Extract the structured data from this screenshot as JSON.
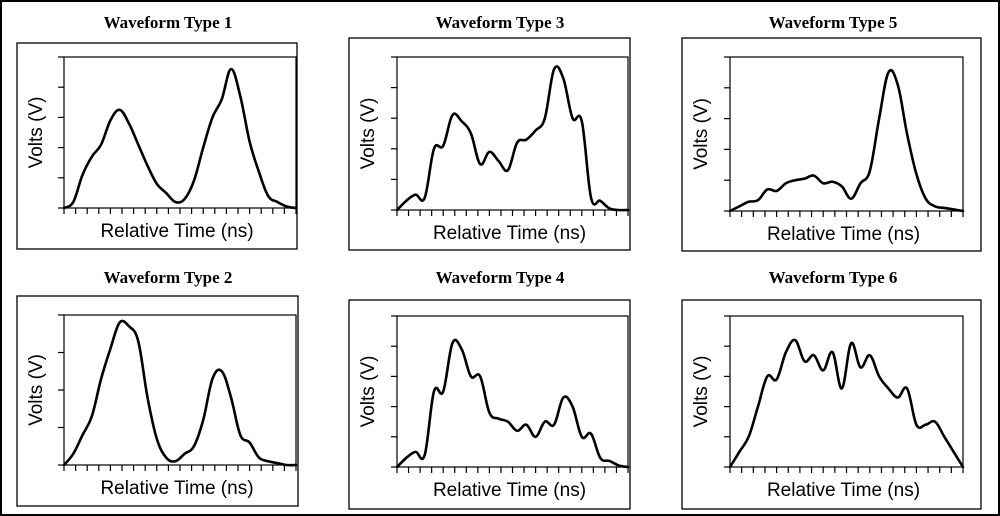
{
  "figure_border": true,
  "chart_data": [
    {
      "type": "line",
      "title": "Waveform Type 1",
      "xlabel": "Relative Time (ns)",
      "ylabel": "Volts (V)",
      "xlim": [
        0,
        20
      ],
      "ylim": [
        0,
        5
      ],
      "x_ticks": 20,
      "y_ticks": 5,
      "series": [
        {
          "name": "Waveform Type 1",
          "x": [
            0,
            0.8,
            1.6,
            2.4,
            3.2,
            4.0,
            4.8,
            5.6,
            6.4,
            7.2,
            8.0,
            8.8,
            9.6,
            10.4,
            11.2,
            12.0,
            12.8,
            13.6,
            14.4,
            15.2,
            16.0,
            16.8,
            17.6,
            18.4,
            19.2,
            20.0
          ],
          "y": [
            0.0,
            0.2,
            1.1,
            1.7,
            2.1,
            2.9,
            3.25,
            2.8,
            2.1,
            1.4,
            0.8,
            0.5,
            0.2,
            0.3,
            0.9,
            2.0,
            3.0,
            3.6,
            4.6,
            3.7,
            2.2,
            1.2,
            0.4,
            0.2,
            0.05,
            0.0
          ]
        }
      ]
    },
    {
      "type": "line",
      "title": "Waveform Type 2",
      "xlabel": "Relative Time (ns)",
      "ylabel": "Volts (V)",
      "xlim": [
        0,
        20
      ],
      "ylim": [
        0,
        4
      ],
      "x_ticks": 20,
      "y_ticks": 4,
      "series": [
        {
          "name": "Waveform Type 2",
          "x": [
            0,
            0.8,
            1.6,
            2.4,
            3.2,
            4.0,
            4.8,
            5.6,
            6.4,
            7.2,
            8.0,
            8.8,
            9.6,
            10.4,
            11.2,
            12.0,
            12.8,
            13.6,
            14.4,
            15.2,
            16.0,
            16.8,
            17.6,
            18.4,
            19.2,
            20.0
          ],
          "y": [
            0.0,
            0.3,
            0.8,
            1.3,
            2.3,
            3.1,
            3.8,
            3.7,
            3.3,
            1.8,
            0.7,
            0.2,
            0.1,
            0.3,
            0.5,
            1.2,
            2.3,
            2.5,
            1.8,
            0.8,
            0.6,
            0.2,
            0.1,
            0.05,
            0.0,
            0.0
          ]
        }
      ]
    },
    {
      "type": "line",
      "title": "Waveform Type 3",
      "xlabel": "Relative Time (ns)",
      "ylabel": "Volts (V)",
      "xlim": [
        0,
        20
      ],
      "ylim": [
        0,
        5
      ],
      "x_ticks": 20,
      "y_ticks": 5,
      "series": [
        {
          "name": "Waveform Type 3",
          "x": [
            0,
            0.8,
            1.6,
            2.4,
            3.2,
            4.0,
            4.8,
            5.6,
            6.4,
            7.2,
            8.0,
            8.8,
            9.6,
            10.4,
            11.2,
            12.0,
            12.8,
            13.6,
            14.4,
            15.2,
            16.0,
            16.8,
            17.6,
            18.4,
            19.2,
            20.0
          ],
          "y": [
            0.0,
            0.3,
            0.5,
            0.4,
            2.0,
            2.1,
            3.1,
            2.9,
            2.5,
            1.5,
            1.9,
            1.6,
            1.3,
            2.2,
            2.3,
            2.6,
            3.0,
            4.6,
            4.3,
            3.0,
            2.9,
            0.4,
            0.3,
            0.05,
            0.0,
            0.0
          ]
        }
      ]
    },
    {
      "type": "line",
      "title": "Waveform Type 4",
      "xlabel": "Relative Time (ns)",
      "ylabel": "Volts (V)",
      "xlim": [
        0,
        20
      ],
      "ylim": [
        0,
        5
      ],
      "x_ticks": 20,
      "y_ticks": 5,
      "series": [
        {
          "name": "Waveform Type 4",
          "x": [
            0,
            0.8,
            1.6,
            2.4,
            3.2,
            4.0,
            4.8,
            5.6,
            6.4,
            7.2,
            8.0,
            8.8,
            9.6,
            10.4,
            11.2,
            12.0,
            12.8,
            13.6,
            14.4,
            15.2,
            16.0,
            16.8,
            17.6,
            18.4,
            19.2,
            20.0
          ],
          "y": [
            0.0,
            0.3,
            0.5,
            0.4,
            2.5,
            2.5,
            4.1,
            3.9,
            3.0,
            3.0,
            1.8,
            1.6,
            1.5,
            1.2,
            1.4,
            1.0,
            1.5,
            1.4,
            2.3,
            2.0,
            1.0,
            1.1,
            0.3,
            0.2,
            0.05,
            0.0
          ]
        }
      ]
    },
    {
      "type": "line",
      "title": "Waveform Type 5",
      "xlabel": "Relative Time (ns)",
      "ylabel": "Volts (V)",
      "xlim": [
        0,
        20
      ],
      "ylim": [
        0,
        5
      ],
      "x_ticks": 20,
      "y_ticks": 5,
      "series": [
        {
          "name": "Waveform Type 5",
          "x": [
            0,
            0.8,
            1.6,
            2.4,
            3.2,
            4.0,
            4.8,
            5.6,
            6.4,
            7.2,
            8.0,
            8.8,
            9.6,
            10.4,
            11.2,
            12.0,
            12.8,
            13.6,
            14.4,
            15.2,
            16.0,
            16.8,
            17.6,
            18.4,
            19.2,
            20.0
          ],
          "y": [
            0.0,
            0.15,
            0.3,
            0.35,
            0.7,
            0.65,
            0.9,
            1.0,
            1.05,
            1.15,
            0.9,
            0.95,
            0.8,
            0.4,
            0.9,
            1.3,
            3.0,
            4.5,
            4.1,
            2.5,
            1.2,
            0.4,
            0.15,
            0.1,
            0.05,
            0.0
          ]
        }
      ]
    },
    {
      "type": "line",
      "title": "Waveform Type 6",
      "xlabel": "Relative Time (ns)",
      "ylabel": "Volts (V)",
      "xlim": [
        0,
        20
      ],
      "ylim": [
        0,
        5
      ],
      "x_ticks": 20,
      "y_ticks": 5,
      "series": [
        {
          "name": "Waveform Type 6",
          "x": [
            0,
            0.8,
            1.6,
            2.4,
            3.2,
            4.0,
            4.8,
            5.6,
            6.4,
            7.2,
            8.0,
            8.8,
            9.6,
            10.4,
            11.2,
            12.0,
            12.8,
            13.6,
            14.4,
            15.2,
            16.0,
            16.8,
            17.6,
            18.4,
            19.2,
            20.0
          ],
          "y": [
            0.0,
            0.5,
            1.0,
            2.0,
            3.0,
            2.9,
            3.8,
            4.2,
            3.5,
            3.7,
            3.2,
            3.8,
            2.6,
            4.1,
            3.3,
            3.7,
            3.0,
            2.6,
            2.3,
            2.6,
            1.4,
            1.4,
            1.5,
            1.0,
            0.5,
            0.0
          ]
        }
      ]
    }
  ]
}
